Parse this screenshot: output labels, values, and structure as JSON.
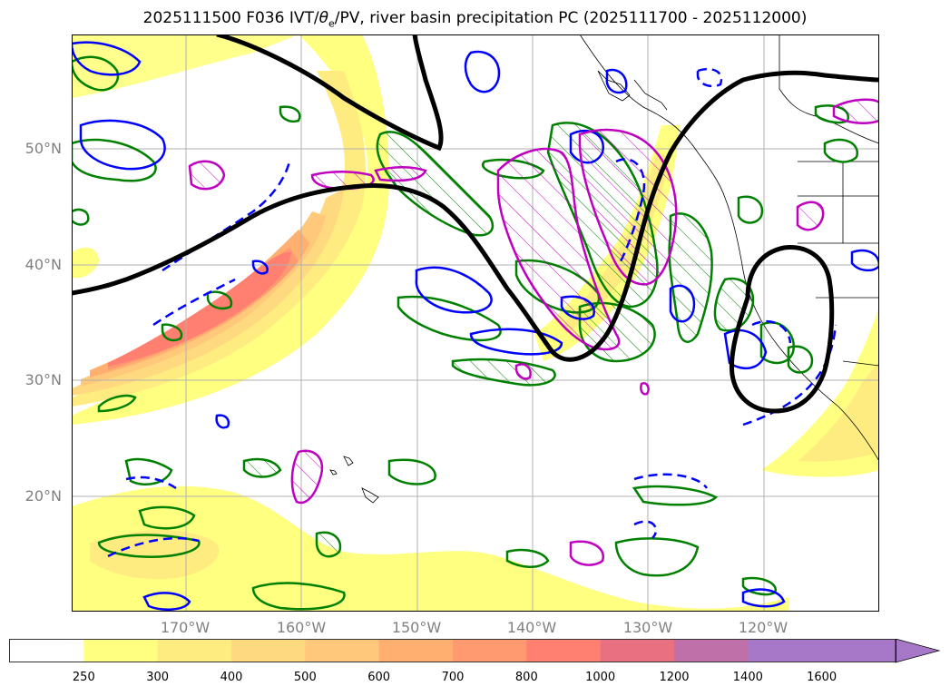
{
  "title": "2025111500 F036 IVT/θe/PV, river basin precipitation PC (2025111700 - 2025112000)",
  "title_parts": {
    "prefix": "2025111500 F036 IVT/",
    "theta": "θ",
    "theta_sub": "e",
    "suffix": "/PV, river basin precipitation PC (2025111700 - 2025112000)"
  },
  "lat_labels": [
    "50°N",
    "40°N",
    "30°N",
    "20°N"
  ],
  "lon_labels": [
    "170°W",
    "160°W",
    "150°W",
    "140°W",
    "130°W",
    "120°W"
  ],
  "colorbar": {
    "ticks": [
      "250",
      "300",
      "400",
      "500",
      "600",
      "700",
      "800",
      "1000",
      "1200",
      "1400",
      "1600"
    ],
    "colors": [
      "#ffffff",
      "#ffff80",
      "#ffec80",
      "#ffd980",
      "#ffc87a",
      "#ffb070",
      "#ff9a70",
      "#ff8070",
      "#e87080",
      "#c070a8",
      "#a878c8"
    ]
  },
  "colors": {
    "ivt_fill_low": "#ffff80",
    "ivt_fill_high": "#ff8070",
    "theta_e_contour": "#000000",
    "pv_positive": "#008000",
    "pv_negative": "#0000ff",
    "precip_pc": "#c000c0",
    "grid": "#b0b0b0",
    "coastline": "#000000"
  }
}
